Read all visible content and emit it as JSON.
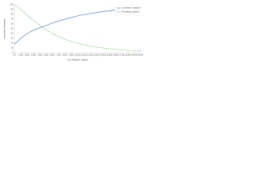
{
  "chart_data": {
    "type": "line",
    "x_label": "Cum Mitigation Capacity",
    "y_label": "Cumulative Percentage",
    "x": [
      0,
      500,
      1000,
      1500,
      2000,
      3000,
      4000,
      5000,
      6000,
      8000,
      10000,
      12000,
      14000,
      16000,
      18000,
      20000
    ],
    "series": [
      {
        "name": "Cumulative Capacity",
        "color": "#5b8bd0",
        "dashed": false,
        "values": [
          18,
          24,
          30,
          35,
          40,
          47,
          52,
          57,
          62,
          70,
          77,
          82,
          86,
          89,
          92,
          94
        ]
      },
      {
        "name": "Remaining Capacity",
        "color": "#7dc47d",
        "dashed": true,
        "values": [
          100,
          96,
          90,
          84,
          78,
          68,
          58,
          48,
          40,
          28,
          20,
          14,
          10,
          7,
          5,
          4
        ]
      }
    ],
    "xlim": [
      0,
      20000
    ],
    "xticks": [
      {
        "value": 0,
        "label": "0.0"
      },
      {
        "value": 1000,
        "label": "1,000"
      },
      {
        "value": 2000,
        "label": "2,000"
      },
      {
        "value": 3000,
        "label": "3,000"
      },
      {
        "value": 4000,
        "label": "4,000"
      },
      {
        "value": 5000,
        "label": "5,000"
      },
      {
        "value": 6000,
        "label": "6,000"
      },
      {
        "value": 7000,
        "label": "7,000"
      },
      {
        "value": 8000,
        "label": "8,000"
      },
      {
        "value": 9000,
        "label": "9,000"
      },
      {
        "value": 10000,
        "label": "10,000"
      },
      {
        "value": 11000,
        "label": "11,000"
      },
      {
        "value": 12000,
        "label": "12,000"
      },
      {
        "value": 13000,
        "label": "13,000"
      },
      {
        "value": 14000,
        "label": "14,000"
      },
      {
        "value": 15000,
        "label": "15,000"
      },
      {
        "value": 16000,
        "label": "16,000"
      },
      {
        "value": 17000,
        "label": "17,000"
      },
      {
        "value": 18000,
        "label": "18,000"
      },
      {
        "value": 19000,
        "label": "19,000"
      },
      {
        "value": 20000,
        "label": "20,000"
      }
    ],
    "ylim": [
      0,
      100
    ],
    "yticks": [
      0,
      10,
      20,
      30,
      40,
      50,
      60,
      70,
      80,
      90,
      100
    ],
    "legend": "upper right"
  }
}
